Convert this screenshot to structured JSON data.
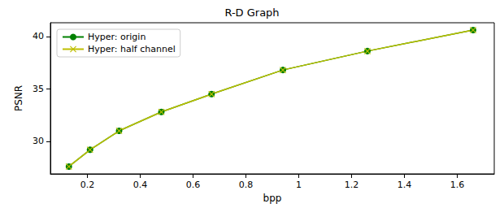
{
  "chart_data": {
    "type": "line",
    "title": "R-D Graph",
    "x_label": "bpp",
    "y_label": "PSNR",
    "series": [
      {
        "name": "Hyper: origin",
        "color": "#008000",
        "marker": "circle",
        "line_style": "solid",
        "x": [
          0.13,
          0.21,
          0.32,
          0.48,
          0.67,
          0.94,
          1.26,
          1.66
        ],
        "values": [
          27.6,
          29.2,
          31.0,
          32.8,
          34.5,
          36.8,
          38.6,
          40.6
        ]
      },
      {
        "name": "Hyper: half channel",
        "color": "#bfbf00",
        "marker": "x",
        "line_style": "solid",
        "x": [
          0.13,
          0.21,
          0.32,
          0.48,
          0.67,
          0.94,
          1.26,
          1.66
        ],
        "values": [
          27.6,
          29.2,
          31.0,
          32.8,
          34.5,
          36.8,
          38.6,
          40.6
        ]
      }
    ],
    "xlim": [
      0.06,
      1.74
    ],
    "xticks": [
      0.2,
      0.4,
      0.6,
      0.8,
      1.0,
      1.2,
      1.4,
      1.6
    ],
    "ylim": [
      26.9,
      41.3
    ],
    "yticks": [
      30,
      35,
      40
    ],
    "grid": false,
    "legend": "upper left"
  }
}
